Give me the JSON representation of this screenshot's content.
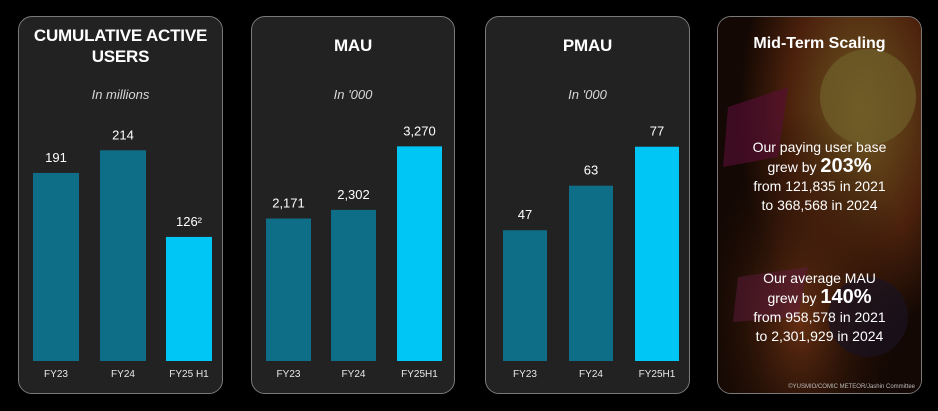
{
  "chart_data": [
    {
      "type": "bar",
      "title": "CUMULATIVE ACTIVE USERS",
      "subtitle": "In millions",
      "categories": [
        "FY23",
        "FY24",
        "FY25 H1"
      ],
      "values": [
        191,
        214,
        126
      ],
      "value_labels": [
        "191",
        "214",
        "126²"
      ],
      "colors": [
        "#0f6e87",
        "#0f6e87",
        "#00c6f5"
      ],
      "ylim": [
        0,
        260
      ]
    },
    {
      "type": "bar",
      "title": "MAU",
      "subtitle": "In '000",
      "categories": [
        "FY23",
        "FY24",
        "FY25H1"
      ],
      "values": [
        2171,
        2302,
        3270
      ],
      "value_labels": [
        "2,171",
        "2,302",
        "3,270"
      ],
      "colors": [
        "#0f6e87",
        "#0f6e87",
        "#00c6f5"
      ],
      "ylim": [
        0,
        3900
      ]
    },
    {
      "type": "bar",
      "title": "PMAU",
      "subtitle": "In '000",
      "categories": [
        "FY23",
        "FY24",
        "FY25H1"
      ],
      "values": [
        47,
        63,
        77
      ],
      "value_labels": [
        "47",
        "63",
        "77"
      ],
      "colors": [
        "#0f6e87",
        "#0f6e87",
        "#00c6f5"
      ],
      "ylim": [
        0,
        92
      ]
    }
  ],
  "midterm": {
    "title": "Mid-Term Scaling",
    "stat1": {
      "line1": "Our paying user base",
      "prefix": "grew by ",
      "value": "203%",
      "line3": "from 121,835 in 2021",
      "line4": "to 368,568 in 2024"
    },
    "stat2": {
      "line1": "Our average MAU",
      "prefix": "grew by ",
      "value": "140%",
      "line3": "from 958,578 in 2021",
      "line4": "to 2,301,929 in 2024"
    },
    "credit": "©YUSMIO/COMIC METEOR/Jashin Committee"
  }
}
